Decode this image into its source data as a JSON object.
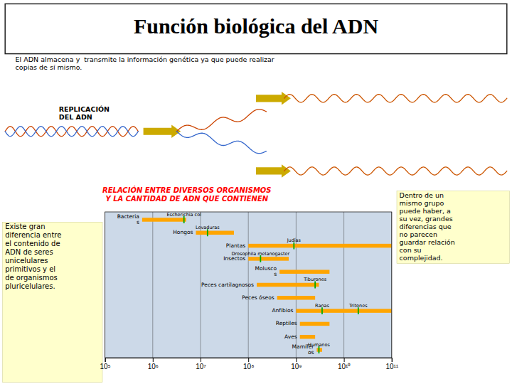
{
  "chart_data": {
    "type": "bar",
    "orientation": "horizontal",
    "log": "x",
    "grid": true,
    "title": "Función biológica del ADN",
    "subtitle": "El ADN almacena y  transmite la información genética ya que puede realizar\ncopias de sí mismo.",
    "annotations": [
      "REPLICACIÓN\nDEL ADN",
      "RELACIÓN ENTRE DIVERSOS ORGANISMOS\nY LA CANTIDAD DE ADN QUE CONTIENEN",
      "Existe gran\ndiferencia entre\nel contenido de\nADN de seres\nunicelulares\nprimitivos y el\nde organismos\npluricelulares.",
      "Dentro de un\nmismo grupo\npuede haber, a\nsu vez, grandes\ndiferencias que\nno parecen\nguardar relación\ncon su\ncomplejidad."
    ],
    "categories": [
      "Bacteria\ns",
      "Hongos",
      "Plantas",
      "Insectos",
      "Molusco\ns",
      "Peces cartilagnosos",
      "Peces óseos",
      "Anfibios",
      "Reptiles",
      "Aves",
      "Mamífer\nos"
    ],
    "values": [
      [
        600000,
        5000000
      ],
      [
        8000000,
        50000000
      ],
      [
        100000000,
        100000000000
      ],
      [
        100000000,
        700000000
      ],
      [
        450000000,
        5000000000
      ],
      [
        150000000,
        3000000000
      ],
      [
        400000000,
        2500000000
      ],
      [
        1000000000,
        100000000000
      ],
      [
        1200000000,
        5000000000
      ],
      [
        1200000000,
        2500000000
      ],
      [
        2700000000,
        3500000000
      ]
    ],
    "color": "#FFA500",
    "highlights": [
      [
        {
          "value": 4500000,
          "label": "Escherichia col"
        }
      ],
      [
        {
          "value": 14000000,
          "label": "Levaduras"
        }
      ],
      [
        {
          "value": 900000000,
          "label": "Judías"
        }
      ],
      [
        {
          "value": 180000000,
          "label": "Drosophila melanogaster"
        }
      ],
      [],
      [
        {
          "value": 2500000000,
          "label": "Tiburones"
        }
      ],
      [],
      [
        {
          "value": 3500000000,
          "label": "Ranas"
        },
        {
          "value": 20000000000,
          "label": "Tritones"
        }
      ],
      [],
      [],
      [
        {
          "value": 3000000000,
          "label": "Humanos"
        }
      ]
    ],
    "xlim": [
      100000,
      100000000000
    ],
    "xticks": [
      {
        "value": 100000,
        "label": "10⁵"
      },
      {
        "value": 1000000,
        "label": "10⁶"
      },
      {
        "value": 10000000,
        "label": "10⁷"
      },
      {
        "value": 100000000,
        "label": "10⁸"
      },
      {
        "value": 1000000000,
        "label": "10⁹"
      },
      {
        "value": 10000000000,
        "label": "10¹⁰"
      },
      {
        "value": 100000000000,
        "label": "10¹¹"
      }
    ]
  }
}
